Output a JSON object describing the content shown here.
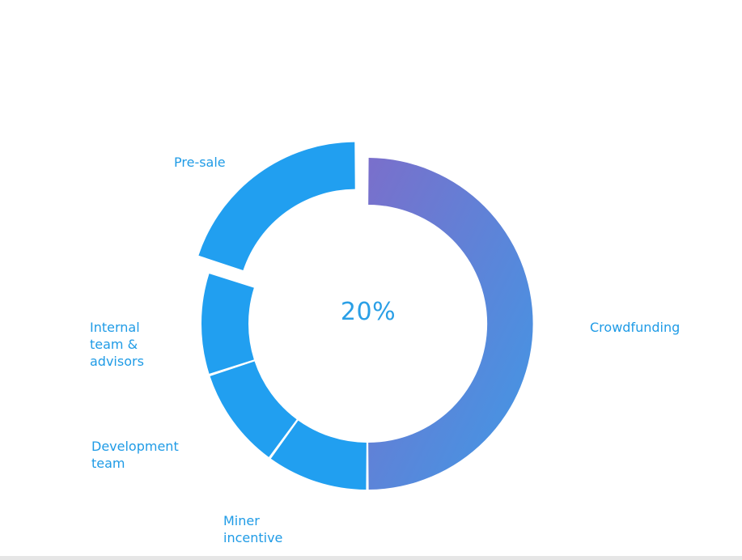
{
  "chart_data": {
    "type": "pie",
    "donut": true,
    "title": "",
    "center_text": "20%",
    "slices": [
      {
        "label": "Crowdfunding",
        "value": 50,
        "color_start": "#7a6fcb",
        "color_end": "#3f99e6"
      },
      {
        "label": "Miner\nincentive",
        "value": 10,
        "color": "#219ff0"
      },
      {
        "label": "Development\nteam",
        "value": 10,
        "color": "#219ff0"
      },
      {
        "label": "Internal\nteam &\nadvisors",
        "value": 10,
        "color": "#219ff0"
      },
      {
        "label": "Pre-sale",
        "value": 20,
        "color": "#219ff0",
        "exploded": true
      }
    ],
    "legend": "none",
    "label_color": "#1f9be6"
  }
}
